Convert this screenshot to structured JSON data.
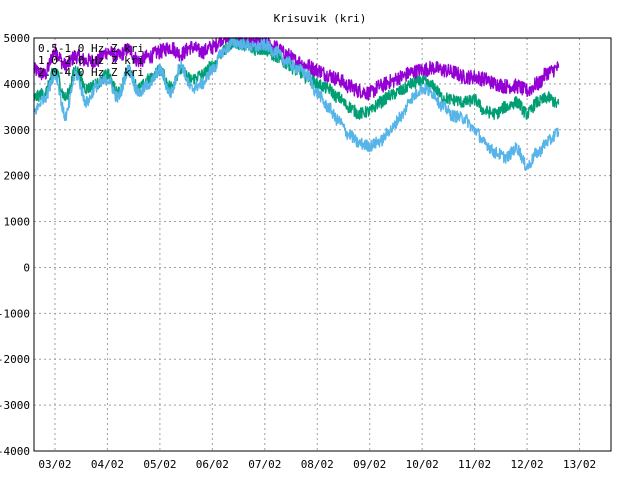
{
  "chart_data": {
    "type": "line",
    "title": "Krisuvik (kri)",
    "xlabel": "",
    "ylabel": "",
    "x_tick_labels": [
      "03/02",
      "04/02",
      "05/02",
      "06/02",
      "07/02",
      "08/02",
      "09/02",
      "10/02",
      "11/02",
      "12/02",
      "13/02"
    ],
    "y_ticks": [
      -4000,
      -3000,
      -2000,
      -1000,
      0,
      1000,
      2000,
      3000,
      4000,
      5000
    ],
    "xlim": [
      2.6,
      13.6
    ],
    "ylim": [
      -4000,
      5000
    ],
    "grid": true,
    "legend_position": "top-left",
    "series": [
      {
        "name": "0.5-1.0 Hz Z kri",
        "color": "#9400d3",
        "x": [
          2.6,
          2.8,
          3.0,
          3.2,
          3.4,
          3.6,
          3.8,
          4.0,
          4.2,
          4.4,
          4.6,
          4.8,
          5.0,
          5.2,
          5.4,
          5.6,
          5.8,
          6.0,
          6.2,
          6.4,
          6.6,
          6.8,
          7.0,
          7.2,
          7.4,
          7.6,
          7.8,
          8.0,
          8.2,
          8.4,
          8.6,
          8.8,
          9.0,
          9.2,
          9.4,
          9.6,
          9.8,
          10.0,
          10.2,
          10.4,
          10.6,
          10.8,
          11.0,
          11.2,
          11.4,
          11.6,
          11.8,
          12.0,
          12.2,
          12.4,
          12.6
        ],
        "y": [
          4300,
          4200,
          4700,
          4400,
          4600,
          4500,
          4500,
          4700,
          4600,
          4750,
          4500,
          4600,
          4700,
          4800,
          4650,
          4800,
          4700,
          4800,
          5000,
          4950,
          5000,
          4900,
          4900,
          4800,
          4650,
          4500,
          4400,
          4300,
          4200,
          4100,
          3950,
          3850,
          3800,
          3950,
          4050,
          4150,
          4250,
          4300,
          4350,
          4300,
          4250,
          4150,
          4150,
          4100,
          4000,
          3950,
          3950,
          3850,
          4000,
          4250,
          4350
        ]
      },
      {
        "name": "1.0-2.0 Hz Z kri",
        "color": "#009e73",
        "x": [
          2.6,
          2.8,
          3.0,
          3.2,
          3.4,
          3.6,
          3.8,
          4.0,
          4.2,
          4.4,
          4.6,
          4.8,
          5.0,
          5.2,
          5.4,
          5.6,
          5.8,
          6.0,
          6.2,
          6.4,
          6.6,
          6.8,
          7.0,
          7.2,
          7.4,
          7.6,
          7.8,
          8.0,
          8.2,
          8.4,
          8.6,
          8.8,
          9.0,
          9.2,
          9.4,
          9.6,
          9.8,
          10.0,
          10.2,
          10.4,
          10.6,
          10.8,
          11.0,
          11.2,
          11.4,
          11.6,
          11.8,
          12.0,
          12.2,
          12.4,
          12.6
        ],
        "y": [
          3700,
          3800,
          4300,
          3700,
          4300,
          3900,
          4000,
          4200,
          3800,
          4300,
          3900,
          4100,
          4300,
          3950,
          4300,
          4100,
          4200,
          4400,
          4700,
          4900,
          4850,
          4750,
          4750,
          4600,
          4450,
          4300,
          4150,
          4000,
          3900,
          3700,
          3500,
          3350,
          3400,
          3600,
          3750,
          3850,
          4000,
          4050,
          3950,
          3700,
          3650,
          3600,
          3650,
          3400,
          3350,
          3500,
          3600,
          3350,
          3600,
          3700,
          3550
        ]
      },
      {
        "name": "2.0-4.0 Hz Z kri",
        "color": "#56b4e9",
        "x": [
          2.6,
          2.8,
          3.0,
          3.2,
          3.4,
          3.6,
          3.8,
          4.0,
          4.2,
          4.4,
          4.6,
          4.8,
          5.0,
          5.2,
          5.4,
          5.6,
          5.8,
          6.0,
          6.2,
          6.4,
          6.6,
          6.8,
          7.0,
          7.2,
          7.4,
          7.6,
          7.8,
          8.0,
          8.2,
          8.4,
          8.6,
          8.8,
          9.0,
          9.2,
          9.4,
          9.6,
          9.8,
          10.0,
          10.2,
          10.4,
          10.6,
          10.8,
          11.0,
          11.2,
          11.4,
          11.6,
          11.8,
          12.0,
          12.2,
          12.4,
          12.6
        ],
        "y": [
          3400,
          3700,
          4200,
          3300,
          4200,
          3600,
          3950,
          4100,
          3700,
          4300,
          3800,
          4000,
          4300,
          3800,
          4400,
          3900,
          4000,
          4300,
          4700,
          4900,
          4850,
          4800,
          4850,
          4700,
          4500,
          4350,
          4200,
          3800,
          3500,
          3200,
          2900,
          2700,
          2650,
          2750,
          3000,
          3300,
          3700,
          3900,
          3800,
          3500,
          3300,
          3250,
          3000,
          2700,
          2500,
          2400,
          2600,
          2200,
          2500,
          2750,
          2950
        ]
      }
    ]
  }
}
